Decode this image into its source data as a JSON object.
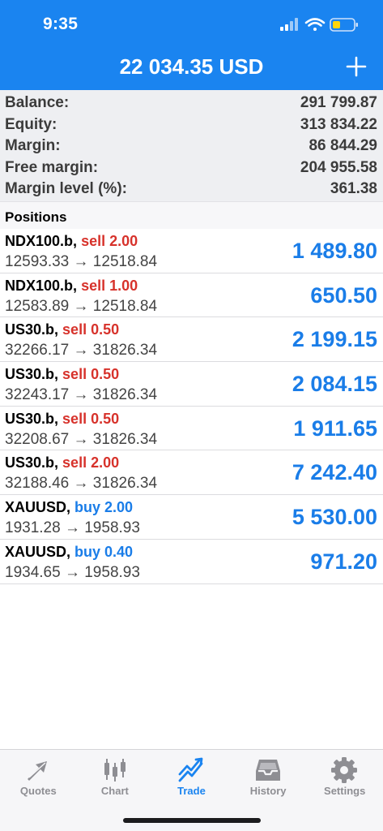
{
  "status_bar": {
    "time": "9:35"
  },
  "header": {
    "title": "22 034.35 USD"
  },
  "summary": [
    {
      "label": "Balance:",
      "value": "291 799.87"
    },
    {
      "label": "Equity:",
      "value": "313 834.22"
    },
    {
      "label": "Margin:",
      "value": "86 844.29"
    },
    {
      "label": "Free margin:",
      "value": "204 955.58"
    },
    {
      "label": "Margin level (%):",
      "value": "361.38"
    }
  ],
  "positions_title": "Positions",
  "positions": [
    {
      "symbol": "NDX100.b,",
      "side": "sell 2.00",
      "type": "sell",
      "prices": "12593.33 → 12518.84",
      "profit": "1 489.80"
    },
    {
      "symbol": "NDX100.b,",
      "side": "sell 1.00",
      "type": "sell",
      "prices": "12583.89 → 12518.84",
      "profit": "650.50"
    },
    {
      "symbol": "US30.b,",
      "side": "sell 0.50",
      "type": "sell",
      "prices": "32266.17 → 31826.34",
      "profit": "2 199.15"
    },
    {
      "symbol": "US30.b,",
      "side": "sell 0.50",
      "type": "sell",
      "prices": "32243.17 → 31826.34",
      "profit": "2 084.15"
    },
    {
      "symbol": "US30.b,",
      "side": "sell 0.50",
      "type": "sell",
      "prices": "32208.67 → 31826.34",
      "profit": "1 911.65"
    },
    {
      "symbol": "US30.b,",
      "side": "sell 2.00",
      "type": "sell",
      "prices": "32188.46 → 31826.34",
      "profit": "7 242.40"
    },
    {
      "symbol": "XAUUSD,",
      "side": "buy 2.00",
      "type": "buy",
      "prices": "1931.28 → 1958.93",
      "profit": "5 530.00"
    },
    {
      "symbol": "XAUUSD,",
      "side": "buy 0.40",
      "type": "buy",
      "prices": "1934.65 → 1958.93",
      "profit": "971.20"
    }
  ],
  "tabs": [
    {
      "label": "Quotes",
      "icon": "quotes-icon"
    },
    {
      "label": "Chart",
      "icon": "candlestick-icon"
    },
    {
      "label": "Trade",
      "icon": "trend-icon"
    },
    {
      "label": "History",
      "icon": "inbox-icon"
    },
    {
      "label": "Settings",
      "icon": "gear-icon"
    }
  ],
  "colors": {
    "accent": "#1a84f0",
    "sell": "#d7322b",
    "buy": "#1a7de8",
    "inactive": "#8e8e93"
  }
}
